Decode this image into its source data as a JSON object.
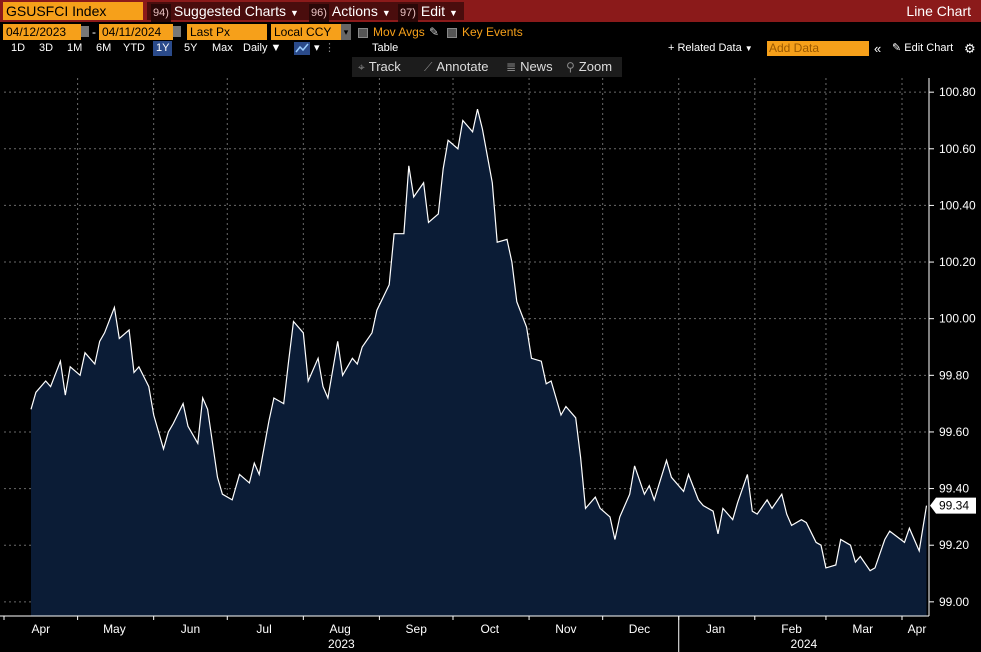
{
  "header": {
    "ticker": "GSUSFCI Index",
    "menus": [
      {
        "num": "94)",
        "label": "Suggested Charts"
      },
      {
        "num": "96)",
        "label": "Actions"
      },
      {
        "num": "97)",
        "label": "Edit"
      }
    ],
    "chart_type_label": "Line Chart"
  },
  "controls": {
    "start_date": "04/12/2023",
    "date_sep": "-",
    "end_date": "04/11/2024",
    "field": "Last Px",
    "currency": "Local CCY",
    "mov_avgs": "Mov Avgs",
    "key_events": "Key Events"
  },
  "periods": [
    "1D",
    "3D",
    "1M",
    "6M",
    "YTD",
    "1Y",
    "5Y",
    "Max"
  ],
  "selected_period": "1Y",
  "frequency": "Daily",
  "table_label": "Table",
  "related_data_label": "+ Related Data",
  "add_data_placeholder": "Add Data",
  "edit_chart_label": "Edit Chart",
  "tools": [
    "Track",
    "Annotate",
    "News",
    "Zoom"
  ],
  "colors": {
    "title_bar": "#8b1a1a",
    "accent_orange": "#f6a01a",
    "area_fill": "#0b1c36",
    "line": "#ffffff",
    "background": "#000000"
  },
  "chart_data": {
    "type": "area",
    "series_label": "GSUSFCI Index",
    "last_value_label": "99.34",
    "ylim": [
      98.95,
      100.85
    ],
    "yticks": [
      "99.00",
      "99.20",
      "99.40",
      "99.60",
      "99.80",
      "100.00",
      "100.20",
      "100.40",
      "100.60",
      "100.80"
    ],
    "month_labels": [
      "Apr",
      "May",
      "Jun",
      "Jul",
      "Aug",
      "Sep",
      "Oct",
      "Nov",
      "Dec",
      "Jan",
      "Feb",
      "Mar",
      "Apr"
    ],
    "year_labels": [
      "2023",
      "2024"
    ],
    "grid": true,
    "x": [
      "2023-04-12",
      "2023-04-14",
      "2023-04-18",
      "2023-04-20",
      "2023-04-24",
      "2023-04-26",
      "2023-04-28",
      "2023-05-02",
      "2023-05-04",
      "2023-05-08",
      "2023-05-10",
      "2023-05-12",
      "2023-05-16",
      "2023-05-18",
      "2023-05-22",
      "2023-05-24",
      "2023-05-26",
      "2023-05-30",
      "2023-06-01",
      "2023-06-05",
      "2023-06-07",
      "2023-06-09",
      "2023-06-13",
      "2023-06-15",
      "2023-06-19",
      "2023-06-21",
      "2023-06-23",
      "2023-06-27",
      "2023-06-29",
      "2023-07-03",
      "2023-07-06",
      "2023-07-10",
      "2023-07-12",
      "2023-07-14",
      "2023-07-18",
      "2023-07-20",
      "2023-07-24",
      "2023-07-26",
      "2023-07-28",
      "2023-08-01",
      "2023-08-03",
      "2023-08-07",
      "2023-08-09",
      "2023-08-11",
      "2023-08-15",
      "2023-08-17",
      "2023-08-21",
      "2023-08-23",
      "2023-08-25",
      "2023-08-29",
      "2023-08-31",
      "2023-09-05",
      "2023-09-07",
      "2023-09-11",
      "2023-09-13",
      "2023-09-15",
      "2023-09-19",
      "2023-09-21",
      "2023-09-25",
      "2023-09-27",
      "2023-09-29",
      "2023-10-03",
      "2023-10-05",
      "2023-10-09",
      "2023-10-11",
      "2023-10-13",
      "2023-10-17",
      "2023-10-19",
      "2023-10-23",
      "2023-10-25",
      "2023-10-27",
      "2023-10-31",
      "2023-11-02",
      "2023-11-06",
      "2023-11-08",
      "2023-11-10",
      "2023-11-14",
      "2023-11-16",
      "2023-11-20",
      "2023-11-22",
      "2023-11-24",
      "2023-11-28",
      "2023-11-30",
      "2023-12-04",
      "2023-12-06",
      "2023-12-08",
      "2023-12-12",
      "2023-12-14",
      "2023-12-18",
      "2023-12-20",
      "2023-12-22",
      "2023-12-27",
      "2023-12-29",
      "2024-01-03",
      "2024-01-05",
      "2024-01-09",
      "2024-01-11",
      "2024-01-15",
      "2024-01-17",
      "2024-01-19",
      "2024-01-23",
      "2024-01-25",
      "2024-01-29",
      "2024-01-31",
      "2024-02-02",
      "2024-02-06",
      "2024-02-08",
      "2024-02-12",
      "2024-02-14",
      "2024-02-16",
      "2024-02-20",
      "2024-02-22",
      "2024-02-26",
      "2024-02-28",
      "2024-03-01",
      "2024-03-05",
      "2024-03-07",
      "2024-03-11",
      "2024-03-13",
      "2024-03-15",
      "2024-03-19",
      "2024-03-21",
      "2024-03-25",
      "2024-03-27",
      "2024-04-02",
      "2024-04-04",
      "2024-04-08",
      "2024-04-11"
    ],
    "values": [
      99.68,
      99.74,
      99.78,
      99.76,
      99.85,
      99.73,
      99.83,
      99.8,
      99.88,
      99.84,
      99.92,
      99.95,
      100.04,
      99.93,
      99.96,
      99.81,
      99.83,
      99.76,
      99.66,
      99.54,
      99.6,
      99.63,
      99.7,
      99.62,
      99.56,
      99.72,
      99.68,
      99.44,
      99.38,
      99.36,
      99.45,
      99.42,
      99.49,
      99.45,
      99.64,
      99.72,
      99.7,
      99.85,
      99.99,
      99.95,
      99.78,
      99.86,
      99.76,
      99.72,
      99.92,
      99.8,
      99.86,
      99.84,
      99.9,
      99.95,
      100.03,
      100.12,
      100.3,
      100.3,
      100.54,
      100.43,
      100.48,
      100.34,
      100.37,
      100.53,
      100.63,
      100.6,
      100.7,
      100.66,
      100.74,
      100.67,
      100.48,
      100.27,
      100.28,
      100.2,
      100.06,
      99.97,
      99.86,
      99.85,
      99.77,
      99.78,
      99.66,
      99.69,
      99.65,
      99.51,
      99.33,
      99.37,
      99.33,
      99.3,
      99.22,
      99.3,
      99.38,
      99.48,
      99.38,
      99.41,
      99.36,
      99.5,
      99.44,
      99.39,
      99.45,
      99.36,
      99.34,
      99.32,
      99.24,
      99.33,
      99.29,
      99.35,
      99.45,
      99.32,
      99.31,
      99.36,
      99.33,
      99.38,
      99.31,
      99.27,
      99.29,
      99.28,
      99.21,
      99.2,
      99.12,
      99.13,
      99.22,
      99.2,
      99.14,
      99.16,
      99.11,
      99.12,
      99.22,
      99.25,
      99.21,
      99.26,
      99.18,
      99.34
    ]
  }
}
